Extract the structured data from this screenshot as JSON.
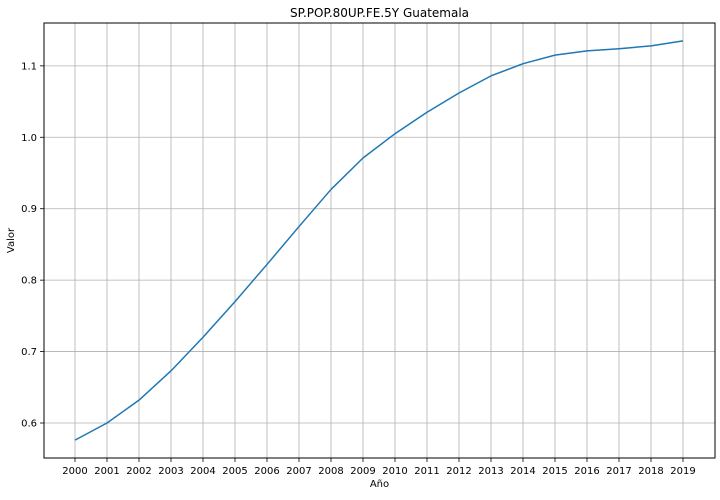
{
  "chart_data": {
    "type": "line",
    "title": "SP.POP.80UP.FE.5Y Guatemala",
    "xlabel": "Año",
    "ylabel": "Valor",
    "x": [
      "2000",
      "2001",
      "2002",
      "2003",
      "2004",
      "2005",
      "2006",
      "2007",
      "2008",
      "2009",
      "2010",
      "2011",
      "2012",
      "2013",
      "2014",
      "2015",
      "2016",
      "2017",
      "2018",
      "2019"
    ],
    "series": [
      {
        "values": [
          0.576,
          0.6,
          0.632,
          0.673,
          0.72,
          0.77,
          0.822,
          0.875,
          0.927,
          0.971,
          1.005,
          1.035,
          1.062,
          1.086,
          1.103,
          1.115,
          1.121,
          1.124,
          1.128,
          1.135
        ],
        "color": "#1f77b4"
      }
    ],
    "yticks": [
      "0.6",
      "0.7",
      "0.8",
      "0.9",
      "1.0",
      "1.1"
    ],
    "ylim": [
      0.551,
      1.16
    ],
    "grid": true,
    "legend": "none"
  }
}
